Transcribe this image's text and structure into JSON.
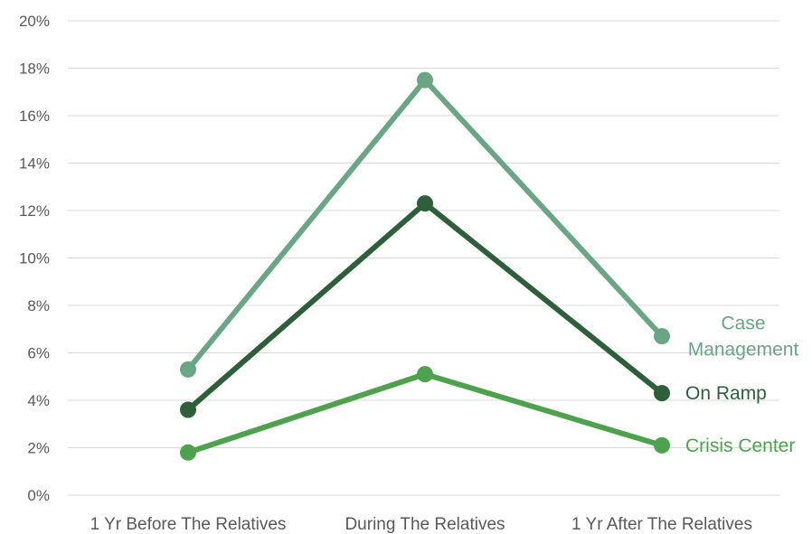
{
  "chart_data": {
    "type": "line",
    "title": "",
    "xlabel": "",
    "ylabel": "",
    "categories": [
      "1 Yr Before The Relatives",
      "During The Relatives",
      "1 Yr After The Relatives"
    ],
    "yticks": [
      "0%",
      "2%",
      "4%",
      "6%",
      "8%",
      "10%",
      "12%",
      "14%",
      "16%",
      "18%",
      "20%"
    ],
    "ylim": [
      0,
      20
    ],
    "grid": true,
    "legend": "direct labels at right end of each line",
    "series": [
      {
        "name": "Case Management",
        "label_lines": [
          "Case",
          "Management"
        ],
        "values": [
          5.3,
          17.5,
          6.7
        ],
        "color": "#6aa584"
      },
      {
        "name": "On Ramp",
        "label_lines": [
          "On Ramp"
        ],
        "values": [
          3.6,
          12.3,
          4.3
        ],
        "color": "#2e5e3a"
      },
      {
        "name": "Crisis Center",
        "label_lines": [
          "Crisis Center"
        ],
        "values": [
          1.8,
          5.1,
          2.1
        ],
        "color": "#4ea24e"
      }
    ]
  }
}
